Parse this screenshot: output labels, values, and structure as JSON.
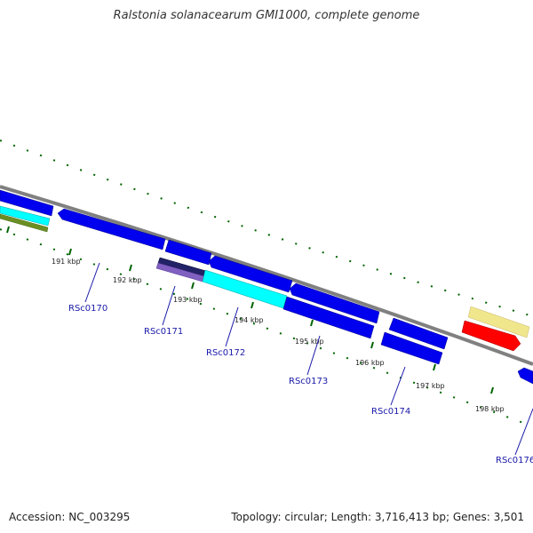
{
  "title": "Ralstonia solanacearum GMI1000, complete genome",
  "footer": {
    "accession": "Accession: NC_003295",
    "topology": "Topology: circular; Length: 3,716,413 bp; Genes: 3,501"
  },
  "colors": {
    "backbone": "#808080",
    "cds": "#0000ee",
    "cds_light": "#00ffff",
    "trna": "#ff0000",
    "misc": "#f0e68c",
    "olive": "#6b8e23",
    "purple": "#8060c0",
    "tick": "#006400",
    "gene_label": "#1a1aaa"
  },
  "ticks": [
    "191 kbp",
    "192 kbp",
    "193 kbp",
    "194 kbp",
    "195 kbp",
    "196 kbp",
    "197 kbp",
    "198 kbp"
  ],
  "genes": [
    "RSc0170",
    "RSc0171",
    "RSc0172",
    "RSc0173",
    "RSc0174",
    "RSc0176"
  ]
}
